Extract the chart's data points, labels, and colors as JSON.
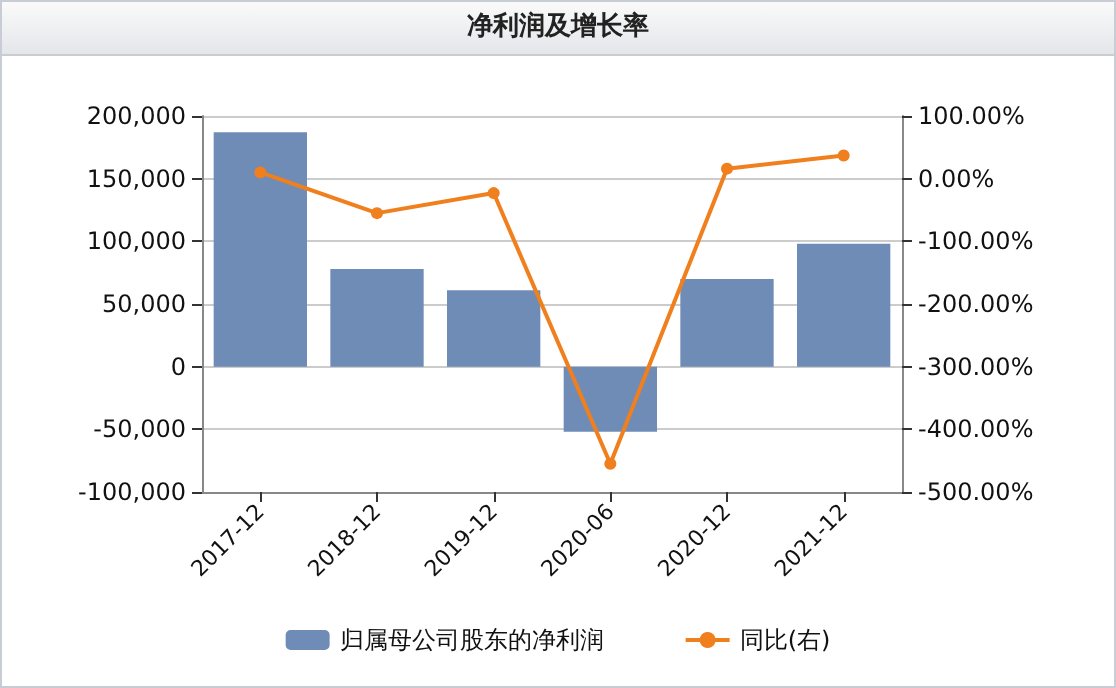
{
  "chart_data": {
    "type": "bar",
    "title": "净利润及增长率",
    "categories": [
      "2017-12",
      "2018-12",
      "2019-12",
      "2020-06",
      "2020-12",
      "2021-12"
    ],
    "series": [
      {
        "name": "归属母公司股东的净利润",
        "color": "#6f8cb7",
        "values": [
          187000,
          78000,
          61000,
          -52000,
          70000,
          98000
        ]
      },
      {
        "name": "同比(右)",
        "type": "line",
        "axis": "y2",
        "color": "#f07f1e",
        "values": [
          10,
          -55,
          -23,
          -455,
          16,
          37
        ]
      }
    ],
    "ylim": [
      -100000,
      200000
    ],
    "yticks": [
      {
        "value": -100000,
        "label": "-100,000"
      },
      {
        "value": -50000,
        "label": "-50,000"
      },
      {
        "value": 0,
        "label": "0"
      },
      {
        "value": 50000,
        "label": "50,000"
      },
      {
        "value": 100000,
        "label": "100,000"
      },
      {
        "value": 150000,
        "label": "150,000"
      },
      {
        "value": 200000,
        "label": "200,000"
      }
    ],
    "y2lim": [
      -500,
      100
    ],
    "y2ticks": [
      {
        "value": -500,
        "label": "-500.00%"
      },
      {
        "value": -400,
        "label": "-400.00%"
      },
      {
        "value": -300,
        "label": "-300.00%"
      },
      {
        "value": -200,
        "label": "-200.00%"
      },
      {
        "value": -100,
        "label": "-100.00%"
      },
      {
        "value": 0,
        "label": "0.00%"
      },
      {
        "value": 100,
        "label": "100.00%"
      }
    ],
    "grid": "y",
    "legend": "bottom",
    "marker": "circle",
    "line_style": "solid"
  }
}
